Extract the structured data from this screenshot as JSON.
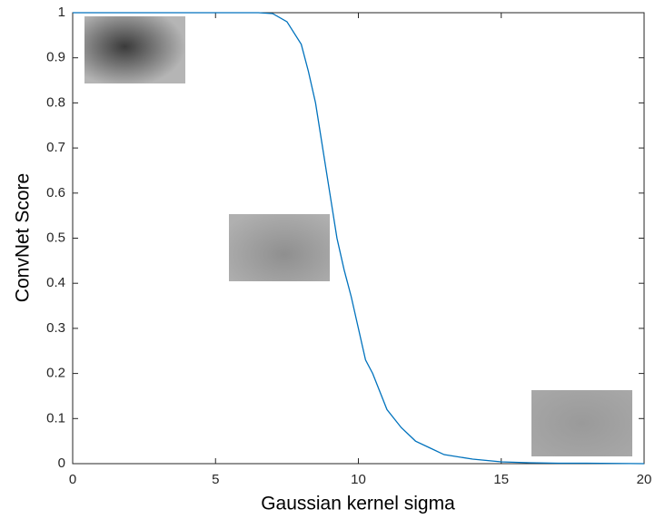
{
  "chart_data": {
    "type": "line",
    "x_label": "Gaussian kernel sigma",
    "y_label": "ConvNet Score",
    "x": [
      0,
      1,
      2,
      3,
      4,
      5,
      6,
      6.5,
      7,
      7.5,
      8,
      8.25,
      8.5,
      8.75,
      9,
      9.25,
      9.5,
      9.75,
      10,
      10.25,
      10.5,
      10.75,
      11,
      11.5,
      12,
      12.5,
      13,
      14,
      15,
      16,
      17,
      18,
      19,
      20
    ],
    "series": [
      {
        "color": "#0072bd",
        "values": [
          1,
          1,
          1,
          1,
          1,
          1,
          1,
          1,
          0.998,
          0.98,
          0.93,
          0.87,
          0.8,
          0.7,
          0.6,
          0.5,
          0.43,
          0.37,
          0.3,
          0.23,
          0.2,
          0.16,
          0.12,
          0.08,
          0.05,
          0.035,
          0.02,
          0.01,
          0.004,
          0.002,
          0.001,
          0.001,
          0.0005,
          0
        ]
      }
    ],
    "xlim": [
      0,
      20
    ],
    "xticks": [
      0,
      5,
      10,
      15,
      20
    ],
    "ylim": [
      0,
      1
    ],
    "yticks": [
      0,
      0.1,
      0.2,
      0.3,
      0.4,
      0.5,
      0.6,
      0.7,
      0.8,
      0.9,
      1
    ]
  }
}
